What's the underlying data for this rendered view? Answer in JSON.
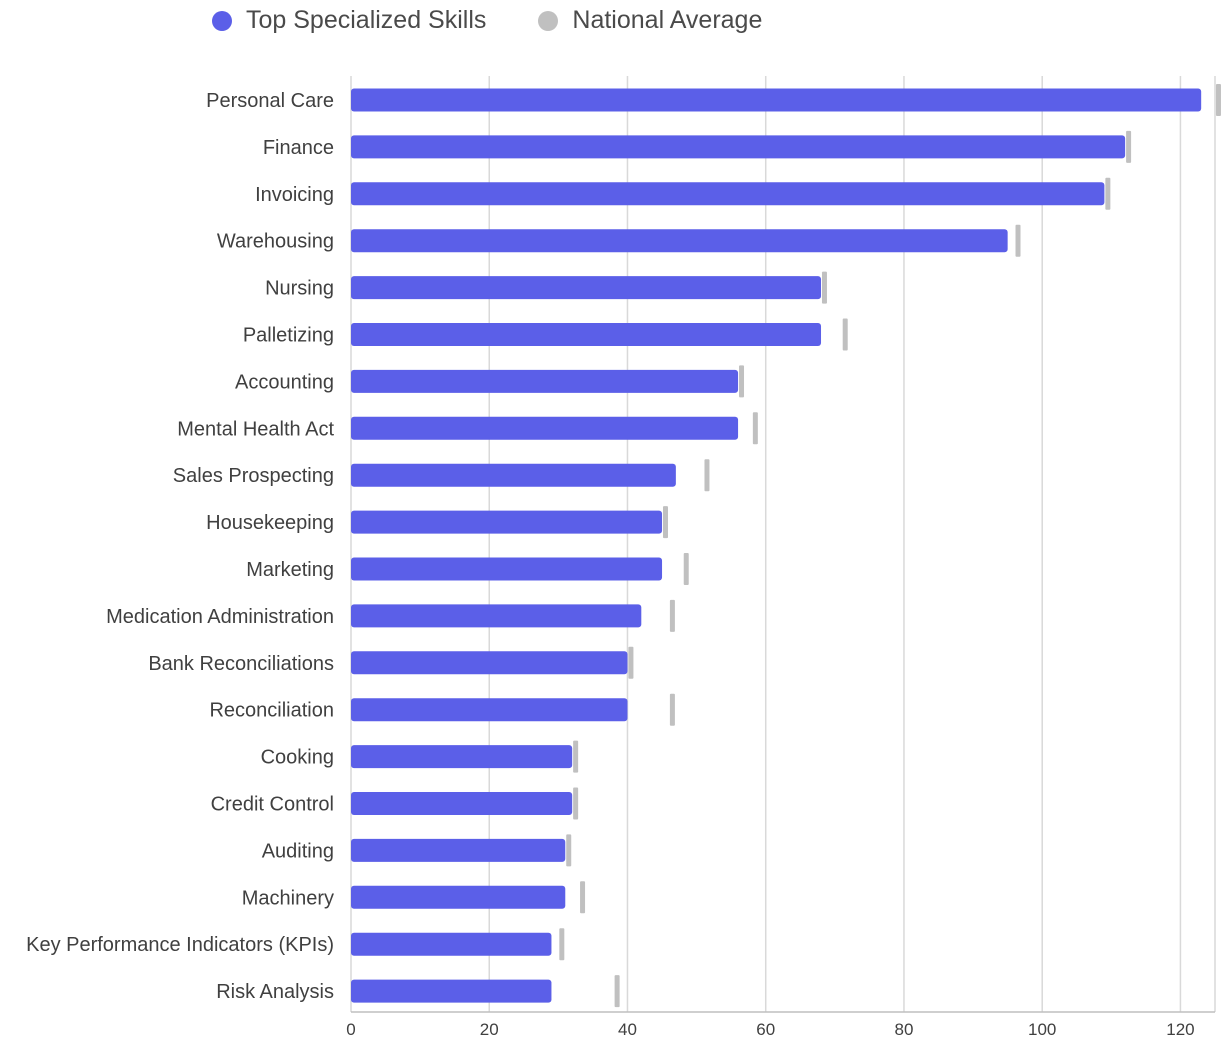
{
  "chart_data": {
    "type": "bar",
    "orientation": "horizontal",
    "title": "",
    "xlabel": "",
    "ylabel": "",
    "xlim": [
      0,
      125
    ],
    "x_ticks": [
      0,
      20,
      40,
      60,
      80,
      100,
      120
    ],
    "grid": "vertical",
    "legend_position": "top",
    "categories": [
      "Personal Care",
      "Finance",
      "Invoicing",
      "Warehousing",
      "Nursing",
      "Palletizing",
      "Accounting",
      "Mental Health Act",
      "Sales Prospecting",
      "Housekeeping",
      "Marketing",
      "Medication Administration",
      "Bank Reconciliations",
      "Reconciliation",
      "Cooking",
      "Credit Control",
      "Auditing",
      "Machinery",
      "Key Performance Indicators (KPIs)",
      "Risk Analysis"
    ],
    "series": [
      {
        "name": "Top Specialized Skills",
        "type": "bar",
        "color": "#5b5fe8",
        "values": [
          123,
          112,
          109,
          95,
          68,
          68,
          56,
          56,
          47,
          45,
          45,
          42,
          40,
          40,
          32,
          32,
          31,
          31,
          29,
          29
        ]
      },
      {
        "name": "National Average",
        "type": "marker",
        "color": "#c0c0c0",
        "values": [
          125.5,
          112.5,
          109.5,
          96.5,
          68.5,
          71.5,
          56.5,
          58.5,
          51.5,
          45.5,
          48.5,
          46.5,
          40.5,
          46.5,
          32.5,
          32.5,
          31.5,
          33.5,
          30.5,
          38.5
        ]
      }
    ]
  }
}
